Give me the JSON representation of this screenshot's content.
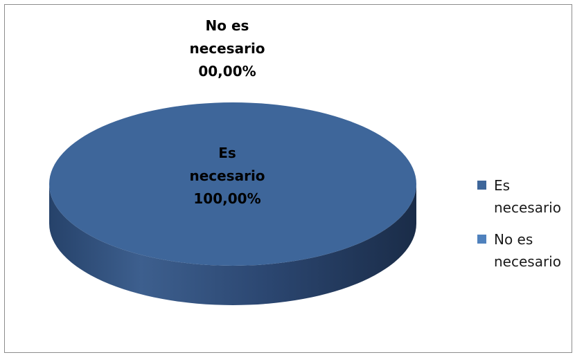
{
  "chart_data": {
    "type": "pie",
    "style": "3d",
    "slices": [
      {
        "label": "Es necesario",
        "value": 100.0,
        "color": "#3e669a",
        "data_label": [
          "Es",
          "necesario",
          "100,00%"
        ]
      },
      {
        "label": "No es necesario",
        "value": 0.0,
        "color": "#4f81bd",
        "data_label": [
          "No es",
          "necesario",
          "00,00%"
        ]
      }
    ],
    "legend": {
      "position": "right",
      "items": [
        {
          "text": [
            "Es",
            "necesario"
          ],
          "color": "#3e669a"
        },
        {
          "text": [
            "No es",
            "necesario"
          ],
          "color": "#4f81bd"
        }
      ]
    }
  }
}
